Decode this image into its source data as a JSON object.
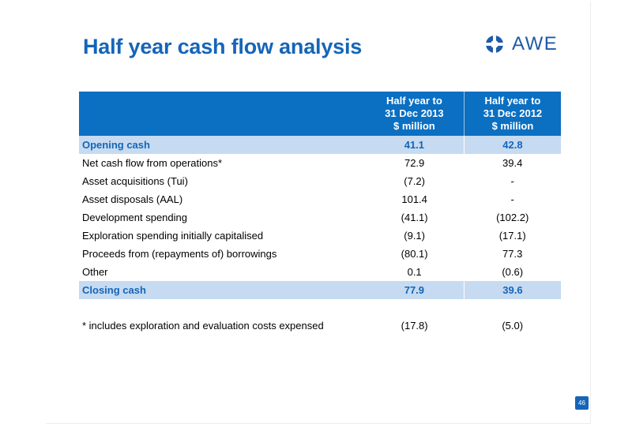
{
  "title": "Half year cash flow analysis",
  "logo": {
    "text": "AWE",
    "icon": "awe-logo-icon",
    "color": "#1f5aa6"
  },
  "table": {
    "headers": [
      "",
      "Half year to\n31 Dec 2013\n$ million",
      "Half year to\n31 Dec 2012\n$ million"
    ],
    "header_lines": [
      [
        "Half year to",
        "31 Dec 2013",
        "$ million"
      ],
      [
        "Half year to",
        "31 Dec 2012",
        "$ million"
      ]
    ],
    "rows": [
      {
        "label": "Opening cash",
        "v2013": "41.1",
        "v2012": "42.8",
        "highlight": true
      },
      {
        "label": "Net cash flow from operations*",
        "v2013": "72.9",
        "v2012": "39.4"
      },
      {
        "label": "Asset acquisitions (Tui)",
        "v2013": "(7.2)",
        "v2012": "-"
      },
      {
        "label": "Asset disposals (AAL)",
        "v2013": "101.4",
        "v2012": "-"
      },
      {
        "label": "Development spending",
        "v2013": "(41.1)",
        "v2012": "(102.2)"
      },
      {
        "label": "Exploration spending initially capitalised",
        "v2013": "(9.1)",
        "v2012": "(17.1)"
      },
      {
        "label": "Proceeds from (repayments of) borrowings",
        "v2013": "(80.1)",
        "v2012": "77.3"
      },
      {
        "label": "Other",
        "v2013": "0.1",
        "v2012": "(0.6)"
      },
      {
        "label": "Closing cash",
        "v2013": "77.9",
        "v2012": "39.6",
        "highlight": true
      }
    ],
    "footnote": {
      "label": "* includes exploration and evaluation costs expensed",
      "v2013": "(17.8)",
      "v2012": "(5.0)"
    }
  },
  "page_number": "46",
  "colors": {
    "accent": "#1565b8",
    "header_bg": "#0b6fc2",
    "highlight_bg": "#c6dbf1"
  }
}
